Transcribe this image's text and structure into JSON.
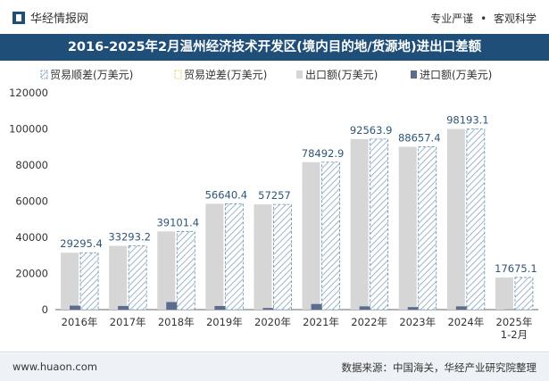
{
  "header": {
    "brand": "华经情报网",
    "tag_left": "专业严谨",
    "tag_sep": "•",
    "tag_right": "客观科学"
  },
  "title": "2016-2025年2月温州经济技术开发区(境内目的地/货源地)进出口差额",
  "footer": {
    "site": "www.huaon.com",
    "source": "数据来源：中国海关，华经产业研究院整理"
  },
  "colors": {
    "navy": "#1f4e79",
    "export_bar": "#d6d6d6",
    "import_bar": "#5b6c8f",
    "hatch_line": "#9fb4c7",
    "hatch_border": "#5f8fb0",
    "label": "#2f5577"
  },
  "chart_data": {
    "type": "bar",
    "categories": [
      "2016年",
      "2017年",
      "2018年",
      "2019年",
      "2020年",
      "2021年",
      "2022年",
      "2023年",
      "2024年",
      "2025年\n1-2月"
    ],
    "ylim": [
      0,
      120000
    ],
    "yticks": [
      0,
      20000,
      40000,
      60000,
      80000,
      100000,
      120000
    ],
    "legend_position": "top",
    "series": [
      {
        "name": "贸易顺差(万美元)",
        "values": [
          29295.4,
          33293.2,
          39101.4,
          56640.4,
          57257,
          78492.9,
          92563.9,
          88657.4,
          98193.1,
          17675.1
        ]
      },
      {
        "name": "贸易逆差(万美元)",
        "values": [
          0,
          0,
          0,
          0,
          0,
          0,
          0,
          0,
          0,
          0
        ]
      },
      {
        "name": "出口额(万美元)",
        "values": [
          31500,
          35300,
          43300,
          58600,
          58200,
          81600,
          94400,
          90100,
          100000,
          17800
        ]
      },
      {
        "name": "进口额(万美元)",
        "values": [
          2200,
          2000,
          4200,
          2000,
          900,
          3100,
          1800,
          1400,
          1800,
          120
        ]
      }
    ],
    "data_labels": [
      "29295.4",
      "33293.2",
      "39101.4",
      "56640.4",
      "57257",
      "78492.9",
      "92563.9",
      "88657.4",
      "98193.1",
      "17675.1"
    ]
  }
}
